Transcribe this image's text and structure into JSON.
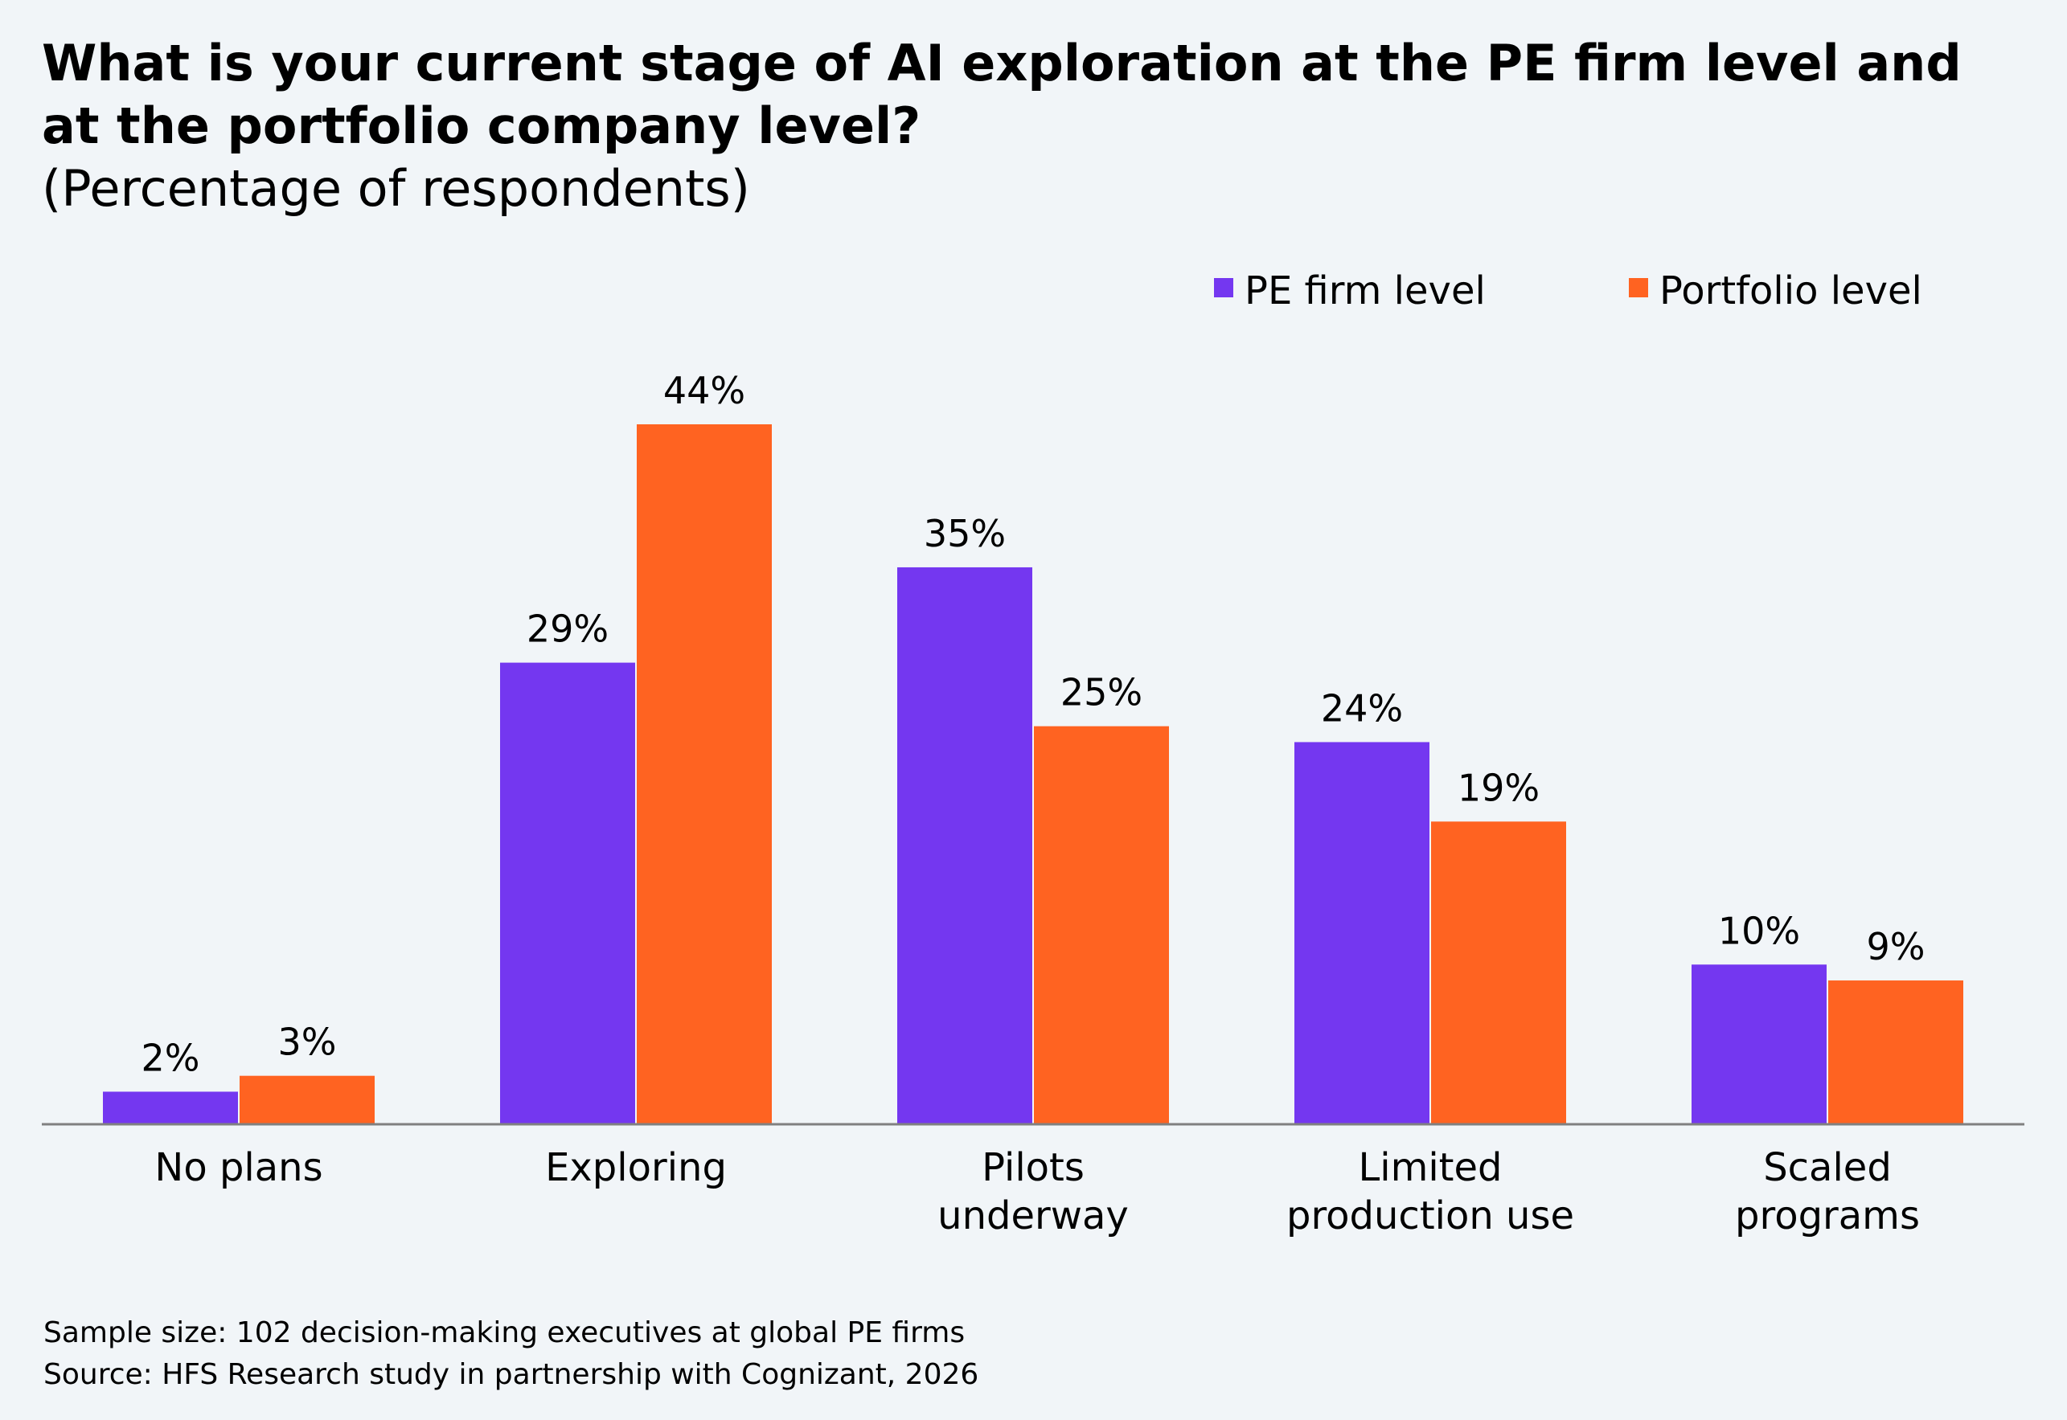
{
  "chart_data": {
    "type": "bar",
    "title": "What is your current stage of AI exploration at the PE firm level and at the portfolio company level?",
    "subtitle": "(Percentage of respondents)",
    "categories": [
      [
        "No plans"
      ],
      [
        "Exploring"
      ],
      [
        "Pilots",
        "underway"
      ],
      [
        "Limited",
        "production use"
      ],
      [
        "Scaled",
        "programs"
      ]
    ],
    "series": [
      {
        "name": "PE firm level",
        "color": "#7437f0",
        "values": [
          2,
          29,
          35,
          24,
          10
        ],
        "labels": [
          "2%",
          "29%",
          "35%",
          "24%",
          "10%"
        ]
      },
      {
        "name": "Portfolio level",
        "color": "#ff6321",
        "values": [
          3,
          44,
          25,
          19,
          9
        ],
        "labels": [
          "3%",
          "44%",
          "25%",
          "19%",
          "9%"
        ]
      }
    ],
    "ylim": [
      0,
      44
    ],
    "grid": false,
    "legend_position": "top-right",
    "colors": {
      "axis": "#808080",
      "background": "#f1f5f8"
    }
  },
  "footnotes": {
    "sample": "Sample size: 102 decision-making executives at global PE firms",
    "source": "Source: HFS Research study in partnership with Cognizant, 2026"
  }
}
